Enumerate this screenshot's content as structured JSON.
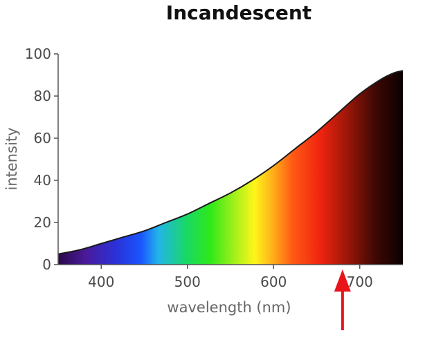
{
  "chart_data": {
    "type": "area",
    "title": "Incandescent",
    "xlabel": "wavelength (nm)",
    "ylabel": "intensity",
    "xlim": [
      350,
      750
    ],
    "ylim": [
      0,
      100
    ],
    "xticks": [
      400,
      500,
      600,
      700
    ],
    "yticks": [
      0,
      20,
      40,
      60,
      80,
      100
    ],
    "grid": false,
    "fill": "visible spectrum gradient (violet to red to black)",
    "series": [
      {
        "x": [
          350,
          375,
          400,
          425,
          450,
          475,
          500,
          525,
          550,
          575,
          600,
          625,
          650,
          675,
          700,
          725,
          740,
          750
        ],
        "y": [
          5,
          7,
          10,
          13,
          16,
          20,
          24,
          29,
          34,
          40,
          47,
          55,
          63,
          72,
          81,
          88,
          91,
          92
        ]
      }
    ],
    "annotations": [
      {
        "type": "arrow",
        "color": "#e8141a",
        "x": 680,
        "direction": "up"
      }
    ]
  }
}
